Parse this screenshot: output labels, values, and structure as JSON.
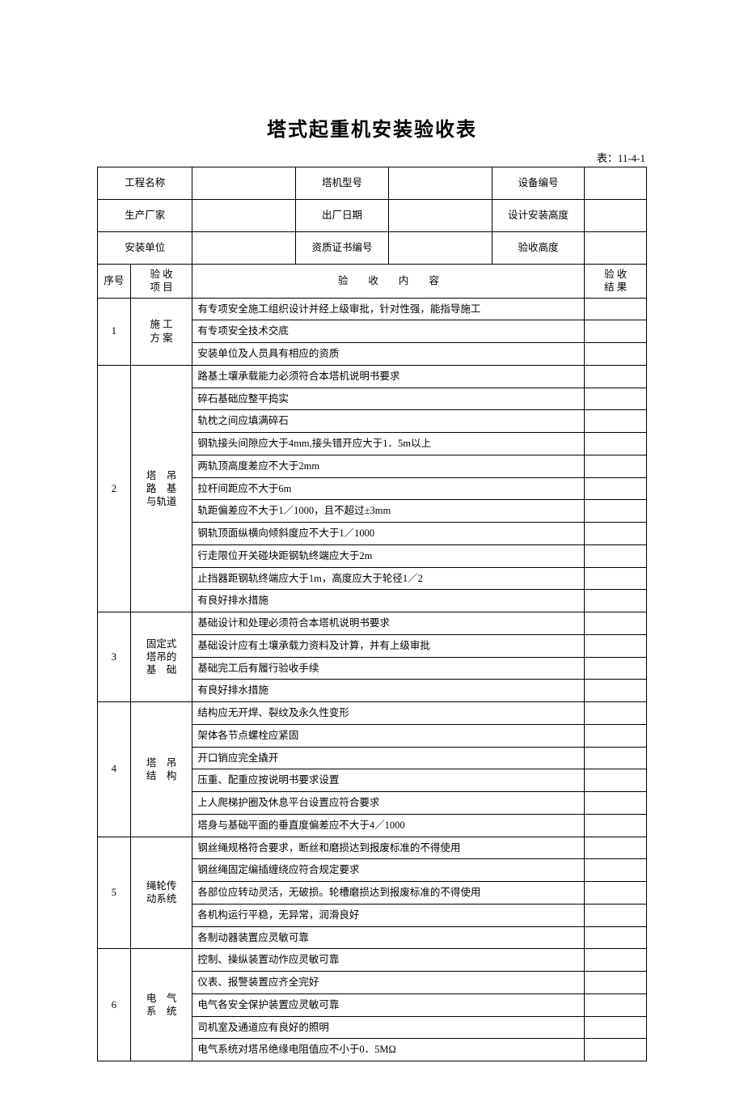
{
  "title": "塔式起重机安装验收表",
  "tableLabel": "表：11-4-1",
  "header": {
    "row1": {
      "label1": "工程名称",
      "val1": "",
      "label2": "塔机型号",
      "val2": "",
      "label3": "设备编号",
      "val3": ""
    },
    "row2": {
      "label1": "生产厂家",
      "val1": "",
      "label2": "出厂日期",
      "val2": "",
      "label3": "设计安装高度",
      "val3": ""
    },
    "row3": {
      "label1": "安装单位",
      "val1": "",
      "label2": "资质证书编号",
      "val2": "",
      "label3": "验收高度",
      "val3": ""
    },
    "colHeaders": {
      "seq": "序号",
      "category": "验 收\n项 目",
      "content": "验　　收　　内　　容",
      "result": "验 收\n结 果"
    }
  },
  "sections": [
    {
      "seq": "1",
      "category": "施 工\n方 案",
      "items": [
        "有专项安全施工组织设计并经上级审批，针对性强，能指导施工",
        "有专项安全技术交底",
        "安装单位及人员具有相应的资质"
      ]
    },
    {
      "seq": "2",
      "category": "塔　吊\n路　基\n与轨道",
      "items": [
        "路基土壤承载能力必须符合本塔机说明书要求",
        "碎石基础应整平捣实",
        "轨枕之间应填满碎石",
        "钢轨接头间隙应大于4mm,接头错开应大于1．5m以上",
        "两轨顶高度差应不大于2mm",
        "拉杆间距应不大于6m",
        "轨距偏差应不大于1／1000，且不超过±3mm",
        "钢轨顶面纵横向倾斜度应不大于1／1000",
        "行走限位开关碰块距钢轨终端应大于2m",
        "止挡器距钢轨终端应大于1m，高度应大于轮径1／2",
        "有良好排水措施"
      ]
    },
    {
      "seq": "3",
      "category": "固定式\n塔吊的\n基　础",
      "items": [
        "基础设计和处理必须符合本塔机说明书要求",
        "基础设计应有土壤承载力资料及计算，并有上级审批",
        "基础完工后有履行验收手续",
        "有良好排水措施"
      ]
    },
    {
      "seq": "4",
      "category": "塔　吊\n结　构",
      "items": [
        "结构应无开焊、裂纹及永久性变形",
        "架体各节点螺栓应紧固",
        "开口销应完全撬开",
        "压重、配重应按说明书要求设置",
        "上人爬梯护圈及休息平台设置应符合要求",
        "塔身与基础平面的垂直度偏差应不大于4／1000"
      ]
    },
    {
      "seq": "5",
      "category": "绳轮传\n动系统",
      "items": [
        "钢丝绳规格符合要求，断丝和磨损达到报废标准的不得使用",
        "钢丝绳固定编插缠绕应符合规定要求",
        "各部位应转动灵活，无破损。轮槽磨损达到报废标准的不得使用",
        "各机构运行平稳，无异常，润滑良好",
        "各制动器装置应灵敏可靠"
      ]
    },
    {
      "seq": "6",
      "category": "电　气\n系　统",
      "items": [
        "控制、操纵装置动作应灵敏可靠",
        "仪表、报警装置应齐全完好",
        "电气各安全保护装置应灵敏可靠",
        "司机室及通道应有良好的照明",
        "电气系统对塔吊绝缘电阻值应不小于0．5MΩ"
      ]
    }
  ]
}
